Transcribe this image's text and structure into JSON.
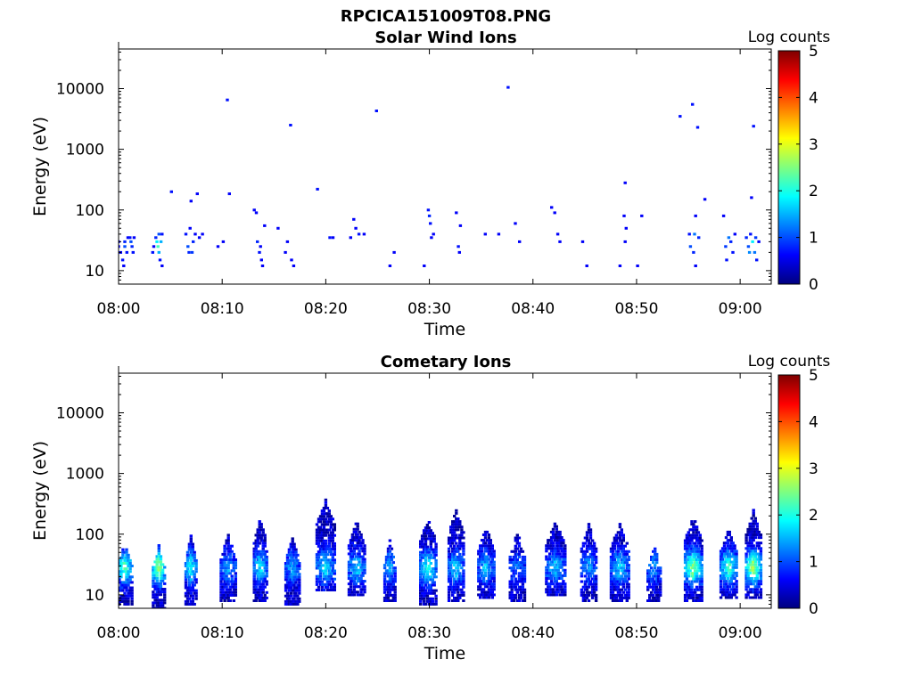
{
  "figure": {
    "title": "RPCICA151009T08.PNG"
  },
  "colormap": {
    "name": "jet",
    "stops": [
      "#00007f",
      "#0000ff",
      "#007fff",
      "#00ffff",
      "#7fff7f",
      "#ffff00",
      "#ff7f00",
      "#ff0000",
      "#7f0000"
    ]
  },
  "chart_data": [
    {
      "type": "heatmap",
      "title": "Solar Wind Ions",
      "xlabel": "Time",
      "ylabel": "Energy (eV)",
      "colorbar_label": "Log counts",
      "x_ticks": [
        "08:00",
        "08:10",
        "08:20",
        "08:30",
        "08:40",
        "08:50",
        "09:00"
      ],
      "x_tick_minutes": [
        0,
        10,
        20,
        30,
        40,
        50,
        60
      ],
      "xlim_minutes": [
        0,
        63
      ],
      "y_scale": "log",
      "y_ticks": [
        "10",
        "100",
        "1000",
        "10000"
      ],
      "y_tick_values": [
        10,
        100,
        1000,
        10000
      ],
      "ylim": [
        6,
        45000
      ],
      "clim": [
        0,
        5
      ],
      "colorbar_ticks": [
        "0",
        "1",
        "2",
        "3",
        "4",
        "5"
      ],
      "cells": [
        [
          0.0,
          30,
          0.6
        ],
        [
          0.0,
          25,
          0.6
        ],
        [
          0.2,
          20,
          0.6
        ],
        [
          0.4,
          15,
          0.7
        ],
        [
          0.5,
          12,
          0.6
        ],
        [
          0.6,
          30,
          0.8
        ],
        [
          0.6,
          25,
          1.0
        ],
        [
          0.8,
          20,
          0.7
        ],
        [
          0.9,
          35,
          0.6
        ],
        [
          1.1,
          35,
          0.7
        ],
        [
          1.2,
          30,
          1.0
        ],
        [
          1.3,
          25,
          0.8
        ],
        [
          1.4,
          20,
          0.7
        ],
        [
          1.5,
          35,
          0.6
        ],
        [
          3.3,
          20,
          0.7
        ],
        [
          3.4,
          25,
          0.6
        ],
        [
          3.6,
          35,
          0.8
        ],
        [
          3.7,
          30,
          1.8
        ],
        [
          3.8,
          25,
          2.2
        ],
        [
          3.9,
          20,
          1.5
        ],
        [
          3.9,
          40,
          1.0
        ],
        [
          4.0,
          15,
          0.7
        ],
        [
          4.1,
          30,
          1.5
        ],
        [
          4.2,
          40,
          0.7
        ],
        [
          4.2,
          12,
          0.6
        ],
        [
          5.1,
          200,
          0.7
        ],
        [
          6.5,
          40,
          0.7
        ],
        [
          6.7,
          25,
          1.0
        ],
        [
          6.8,
          20,
          0.8
        ],
        [
          6.9,
          50,
          0.6
        ],
        [
          7.0,
          140,
          0.6
        ],
        [
          7.1,
          20,
          0.9
        ],
        [
          7.2,
          30,
          0.8
        ],
        [
          7.4,
          40,
          0.6
        ],
        [
          7.6,
          185,
          0.6
        ],
        [
          7.8,
          35,
          0.6
        ],
        [
          8.1,
          40,
          0.6
        ],
        [
          9.6,
          25,
          0.6
        ],
        [
          10.1,
          30,
          0.6
        ],
        [
          10.5,
          6500,
          0.7
        ],
        [
          10.7,
          185,
          0.6
        ],
        [
          13.1,
          100,
          0.6
        ],
        [
          13.3,
          90,
          0.6
        ],
        [
          13.4,
          30,
          0.8
        ],
        [
          13.6,
          20,
          0.7
        ],
        [
          13.7,
          25,
          0.6
        ],
        [
          13.8,
          15,
          0.6
        ],
        [
          13.9,
          12,
          0.6
        ],
        [
          14.1,
          55,
          0.6
        ],
        [
          15.4,
          50,
          0.6
        ],
        [
          16.1,
          20,
          0.6
        ],
        [
          16.3,
          30,
          0.6
        ],
        [
          16.6,
          2500,
          0.7
        ],
        [
          16.7,
          15,
          0.6
        ],
        [
          16.9,
          12,
          0.6
        ],
        [
          19.2,
          220,
          0.7
        ],
        [
          20.4,
          35,
          0.7
        ],
        [
          20.7,
          35,
          0.6
        ],
        [
          22.4,
          35,
          0.6
        ],
        [
          22.7,
          70,
          0.6
        ],
        [
          22.9,
          50,
          0.6
        ],
        [
          23.2,
          40,
          0.7
        ],
        [
          23.7,
          40,
          0.6
        ],
        [
          24.9,
          4300,
          0.7
        ],
        [
          26.2,
          12,
          0.6
        ],
        [
          26.6,
          20,
          0.6
        ],
        [
          29.5,
          12,
          0.6
        ],
        [
          29.9,
          100,
          0.7
        ],
        [
          30.0,
          80,
          0.8
        ],
        [
          30.1,
          60,
          0.7
        ],
        [
          30.2,
          35,
          0.6
        ],
        [
          30.4,
          40,
          0.6
        ],
        [
          32.6,
          90,
          0.6
        ],
        [
          32.8,
          25,
          0.7
        ],
        [
          32.9,
          20,
          0.6
        ],
        [
          33.0,
          55,
          0.6
        ],
        [
          35.4,
          40,
          0.6
        ],
        [
          36.7,
          40,
          0.6
        ],
        [
          37.6,
          10500,
          0.7
        ],
        [
          38.3,
          60,
          0.6
        ],
        [
          38.7,
          30,
          0.6
        ],
        [
          41.8,
          110,
          0.6
        ],
        [
          42.1,
          90,
          0.6
        ],
        [
          42.4,
          40,
          0.6
        ],
        [
          42.6,
          30,
          0.6
        ],
        [
          44.8,
          30,
          0.6
        ],
        [
          45.2,
          12,
          0.6
        ],
        [
          48.4,
          12,
          0.6
        ],
        [
          48.8,
          80,
          0.6
        ],
        [
          48.9,
          280,
          0.6
        ],
        [
          48.9,
          30,
          0.6
        ],
        [
          49.0,
          50,
          0.6
        ],
        [
          50.1,
          12,
          0.6
        ],
        [
          50.5,
          80,
          0.6
        ],
        [
          54.2,
          3500,
          0.7
        ],
        [
          55.1,
          40,
          0.7
        ],
        [
          55.2,
          25,
          1.0
        ],
        [
          55.4,
          5500,
          0.7
        ],
        [
          55.5,
          20,
          0.8
        ],
        [
          55.6,
          40,
          1.2
        ],
        [
          55.7,
          80,
          0.6
        ],
        [
          55.7,
          12,
          0.6
        ],
        [
          55.9,
          2300,
          0.7
        ],
        [
          56.0,
          35,
          0.8
        ],
        [
          56.6,
          150,
          0.6
        ],
        [
          58.4,
          80,
          0.6
        ],
        [
          58.6,
          25,
          0.9
        ],
        [
          58.7,
          15,
          0.7
        ],
        [
          58.9,
          35,
          1.2
        ],
        [
          59.1,
          30,
          0.8
        ],
        [
          59.3,
          20,
          0.7
        ],
        [
          59.5,
          40,
          0.6
        ],
        [
          60.6,
          35,
          0.8
        ],
        [
          60.8,
          25,
          1.0
        ],
        [
          60.9,
          20,
          1.3
        ],
        [
          61.0,
          40,
          0.7
        ],
        [
          61.1,
          160,
          0.6
        ],
        [
          61.2,
          30,
          1.8
        ],
        [
          61.3,
          2400,
          0.7
        ],
        [
          61.4,
          20,
          1.2
        ],
        [
          61.5,
          35,
          0.9
        ],
        [
          61.6,
          15,
          0.7
        ],
        [
          61.8,
          30,
          0.6
        ]
      ]
    },
    {
      "type": "heatmap",
      "title": "Cometary Ions",
      "xlabel": "Time",
      "ylabel": "Energy (eV)",
      "colorbar_label": "Log counts",
      "x_ticks": [
        "08:00",
        "08:10",
        "08:20",
        "08:30",
        "08:40",
        "08:50",
        "09:00"
      ],
      "x_tick_minutes": [
        0,
        10,
        20,
        30,
        40,
        50,
        60
      ],
      "xlim_minutes": [
        0,
        63
      ],
      "y_scale": "log",
      "y_ticks": [
        "10",
        "100",
        "1000",
        "10000"
      ],
      "y_tick_values": [
        10,
        100,
        1000,
        10000
      ],
      "ylim": [
        6,
        45000
      ],
      "clim": [
        0,
        5
      ],
      "colorbar_ticks": [
        "0",
        "1",
        "2",
        "3",
        "4",
        "5"
      ],
      "bursts": [
        {
          "t": 0.6,
          "peak": 2.2,
          "top": 75,
          "w": 1.4,
          "lo": 7
        },
        {
          "t": 3.9,
          "peak": 2.9,
          "top": 70,
          "w": 1.1,
          "lo": 6
        },
        {
          "t": 7.0,
          "peak": 2.0,
          "top": 95,
          "w": 1.0,
          "lo": 7
        },
        {
          "t": 10.6,
          "peak": 1.4,
          "top": 100,
          "w": 1.4,
          "lo": 8
        },
        {
          "t": 13.7,
          "peak": 1.9,
          "top": 190,
          "w": 1.2,
          "lo": 8
        },
        {
          "t": 16.8,
          "peak": 1.5,
          "top": 90,
          "w": 1.3,
          "lo": 7
        },
        {
          "t": 20.0,
          "peak": 1.8,
          "top": 380,
          "w": 1.7,
          "lo": 12
        },
        {
          "t": 23.0,
          "peak": 1.7,
          "top": 170,
          "w": 1.5,
          "lo": 10
        },
        {
          "t": 26.2,
          "peak": 1.6,
          "top": 80,
          "w": 1.0,
          "lo": 8
        },
        {
          "t": 29.9,
          "peak": 2.1,
          "top": 190,
          "w": 1.5,
          "lo": 7
        },
        {
          "t": 32.6,
          "peak": 1.7,
          "top": 270,
          "w": 1.4,
          "lo": 8
        },
        {
          "t": 35.5,
          "peak": 1.6,
          "top": 140,
          "w": 1.5,
          "lo": 9
        },
        {
          "t": 38.5,
          "peak": 1.2,
          "top": 110,
          "w": 1.4,
          "lo": 8
        },
        {
          "t": 42.2,
          "peak": 1.6,
          "top": 170,
          "w": 1.8,
          "lo": 10
        },
        {
          "t": 45.4,
          "peak": 1.4,
          "top": 150,
          "w": 1.4,
          "lo": 8
        },
        {
          "t": 48.4,
          "peak": 1.7,
          "top": 150,
          "w": 1.7,
          "lo": 8
        },
        {
          "t": 51.7,
          "peak": 1.4,
          "top": 70,
          "w": 1.2,
          "lo": 8
        },
        {
          "t": 55.5,
          "peak": 2.6,
          "top": 200,
          "w": 1.6,
          "lo": 8
        },
        {
          "t": 58.9,
          "peak": 2.2,
          "top": 130,
          "w": 1.5,
          "lo": 9
        },
        {
          "t": 61.3,
          "peak": 2.8,
          "top": 250,
          "w": 1.4,
          "lo": 9
        }
      ]
    }
  ]
}
